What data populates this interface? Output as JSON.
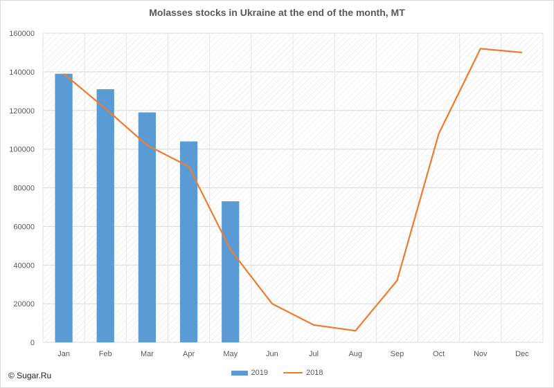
{
  "chart_data": {
    "type": "bar+line",
    "title": "Molasses stocks in Ukraine at the end of the month, MT",
    "categories": [
      "Jan",
      "Feb",
      "Mar",
      "Apr",
      "May",
      "Jun",
      "Jul",
      "Aug",
      "Sep",
      "Oct",
      "Nov",
      "Dec"
    ],
    "series": [
      {
        "name": "2019",
        "type": "bar",
        "color": "#5b9bd5",
        "values": [
          139000,
          131000,
          119000,
          104000,
          73000,
          null,
          null,
          null,
          null,
          null,
          null,
          null
        ]
      },
      {
        "name": "2018",
        "type": "line",
        "color": "#ed7d31",
        "values": [
          139000,
          121000,
          102000,
          91000,
          48000,
          20000,
          9000,
          6000,
          32000,
          108000,
          152000,
          150000
        ]
      }
    ],
    "ylim": [
      0,
      160000
    ],
    "yticks": [
      0,
      20000,
      40000,
      60000,
      80000,
      100000,
      120000,
      140000,
      160000
    ],
    "grid": true,
    "legend_position": "bottom"
  },
  "copyright": "© Sugar.Ru"
}
